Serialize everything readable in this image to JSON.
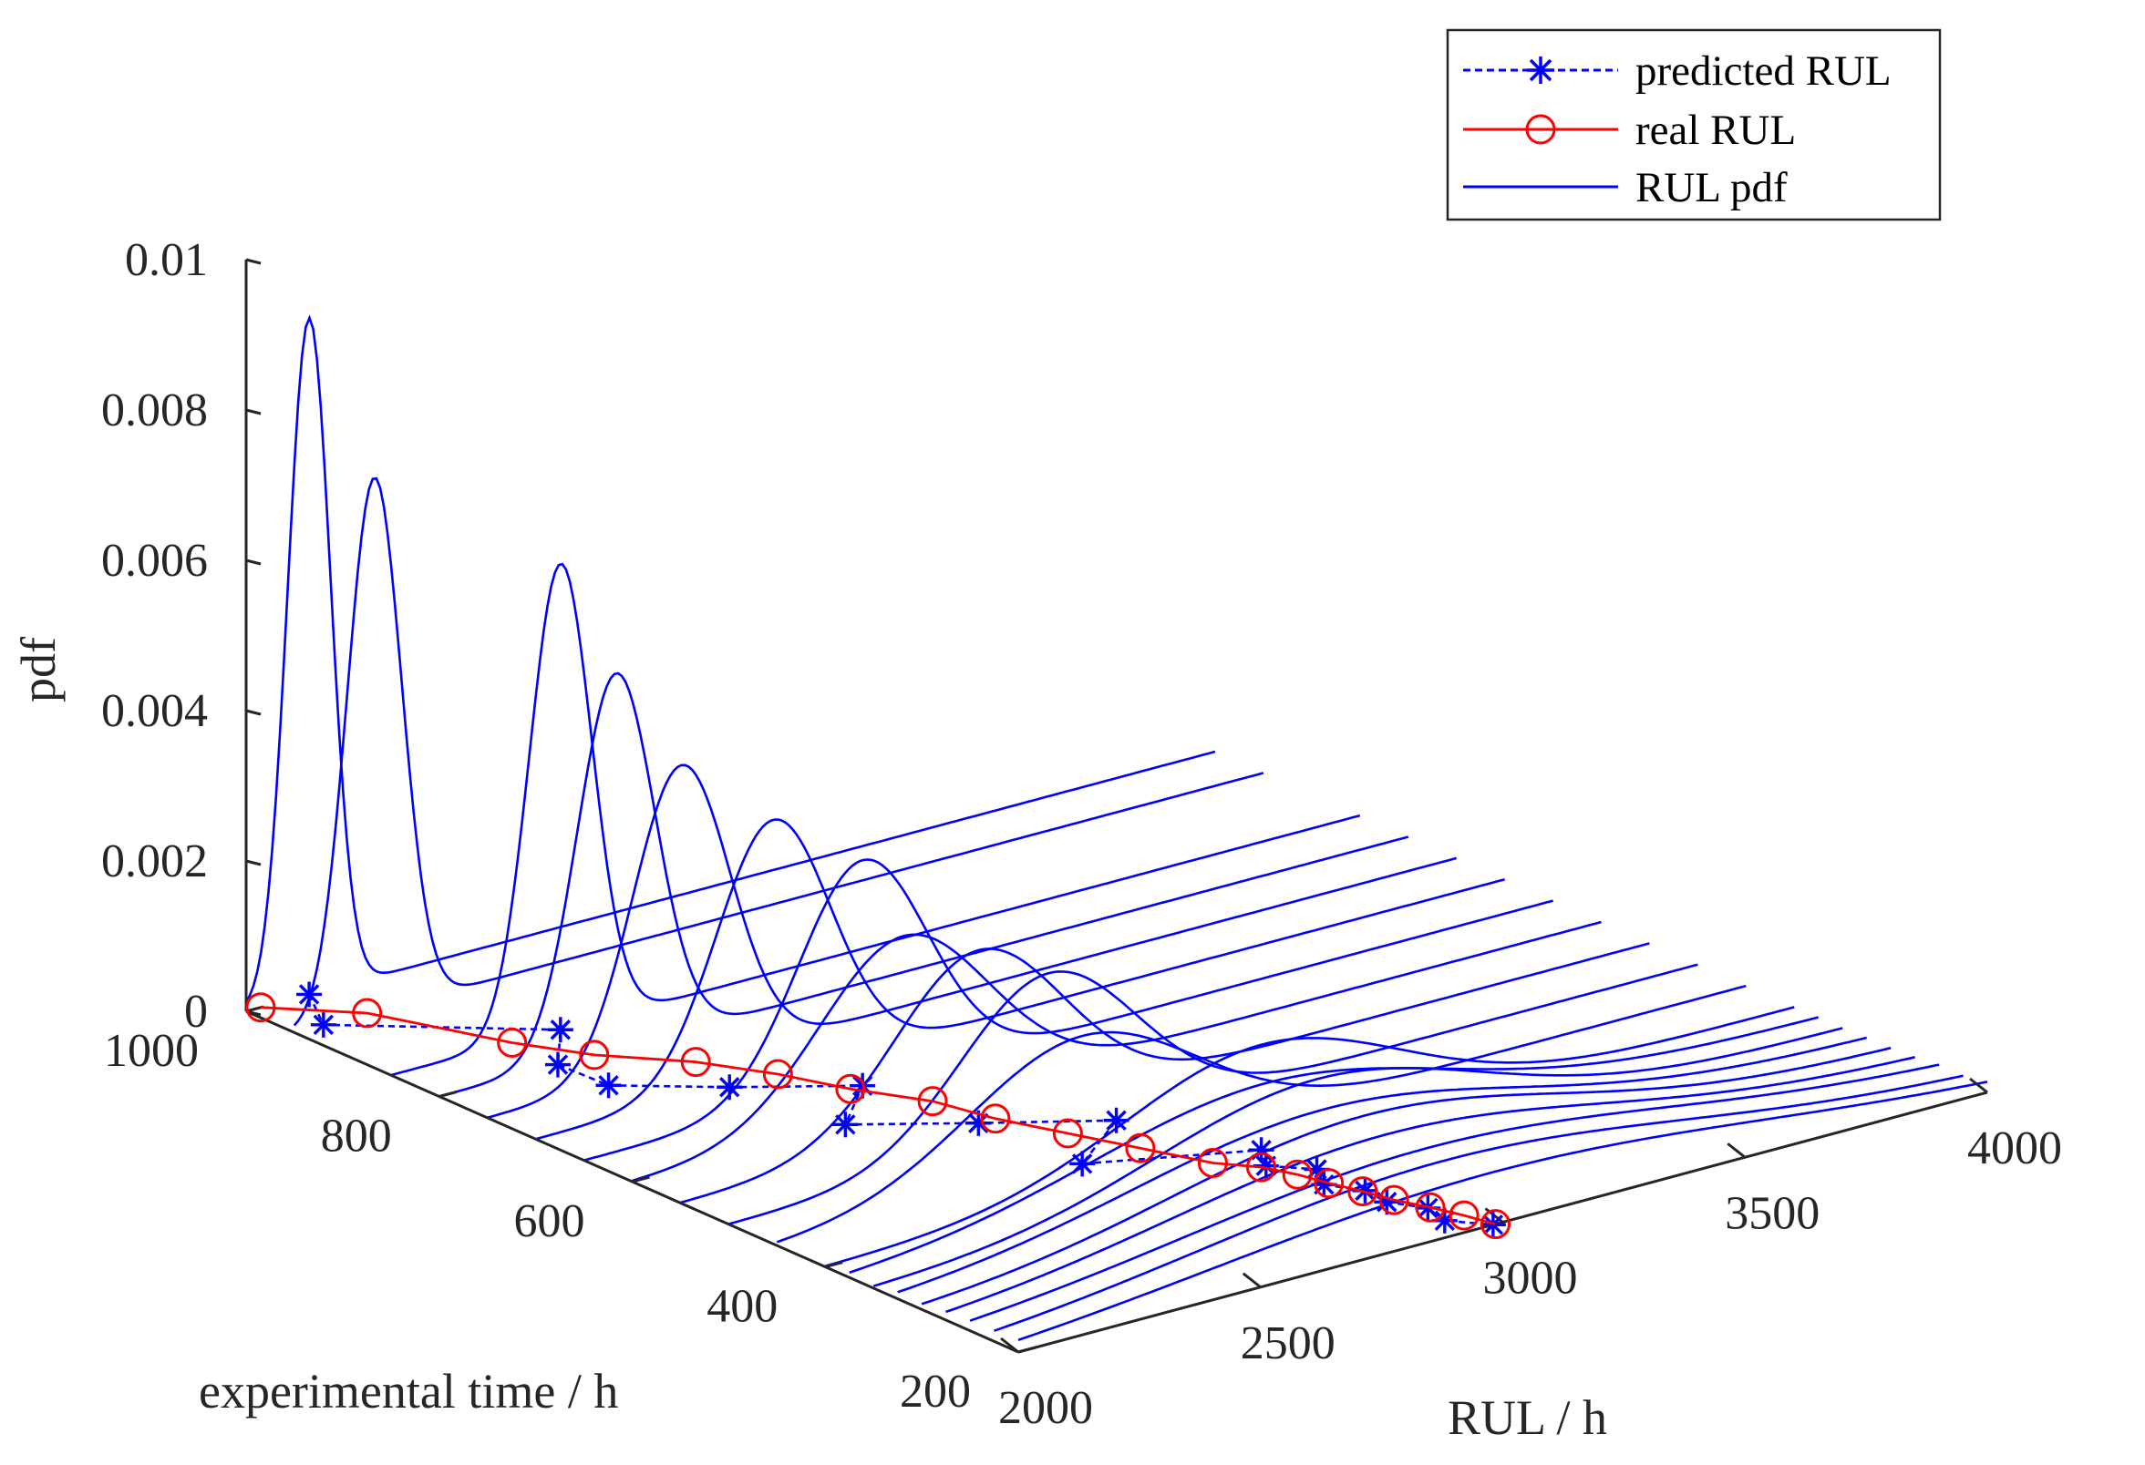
{
  "chart_data": {
    "type": "3d-line",
    "xlabel": "RUL / h",
    "ylabel": "experimental time / h",
    "zlabel": "pdf",
    "xlim": [
      2000,
      4000
    ],
    "ylim": [
      200,
      1000
    ],
    "zlim": [
      0,
      0.01
    ],
    "x_ticks": [
      "2000",
      "2500",
      "3000",
      "3500",
      "4000"
    ],
    "y_ticks": [
      "200",
      "400",
      "600",
      "800",
      "1000"
    ],
    "z_ticks": [
      "0",
      "0.002",
      "0.004",
      "0.006",
      "0.008",
      "0.01"
    ],
    "colors": {
      "pdf": "#0000ff",
      "predicted": "#0000ff",
      "real": "#ff0000",
      "axis": "#262626"
    },
    "legend": {
      "position": "top-right",
      "entries": [
        {
          "label": "predicted RUL",
          "style": "dashed",
          "marker": "*",
          "color": "#0000ff"
        },
        {
          "label": "real RUL",
          "style": "solid",
          "marker": "o",
          "color": "#ff0000"
        },
        {
          "label": "RUL pdf",
          "style": "solid",
          "marker": "",
          "color": "#0000ff"
        }
      ]
    },
    "series": [
      {
        "name": "RUL pdf",
        "pdf_curves": [
          {
            "t": 1000,
            "mean": 2130,
            "peak": 0.009
          },
          {
            "t": 950,
            "mean": 2165,
            "peak": 0.0071
          },
          {
            "t": 850,
            "mean": 2350,
            "peak": 0.0062
          },
          {
            "t": 800,
            "mean": 2365,
            "peak": 0.005
          },
          {
            "t": 750,
            "mean": 2400,
            "peak": 0.004
          },
          {
            "t": 700,
            "mean": 2490,
            "peak": 0.0034
          },
          {
            "t": 650,
            "mean": 2575,
            "peak": 0.003
          },
          {
            "t": 600,
            "mean": 2560,
            "peak": 0.0023
          },
          {
            "t": 550,
            "mean": 2615,
            "peak": 0.0023
          },
          {
            "t": 500,
            "mean": 2660,
            "peak": 0.0022
          },
          {
            "t": 450,
            "mean": 2630,
            "peak": 0.0017
          },
          {
            "t": 400,
            "mean": 2900,
            "peak": 0.0014
          },
          {
            "t": 375,
            "mean": 2860,
            "peak": 0.0011
          },
          {
            "t": 350,
            "mean": 2915,
            "peak": 0.0012
          },
          {
            "t": 325,
            "mean": 2880,
            "peak": 0.001
          },
          {
            "t": 300,
            "mean": 2915,
            "peak": 0.001
          },
          {
            "t": 275,
            "mean": 2910,
            "peak": 0.0009
          },
          {
            "t": 250,
            "mean": 2945,
            "peak": 0.0008
          },
          {
            "t": 225,
            "mean": 2930,
            "peak": 0.0008
          },
          {
            "t": 200,
            "mean": 2980,
            "peak": 0.0007
          }
        ]
      },
      {
        "name": "predicted RUL",
        "points": [
          {
            "t": 1000,
            "rul": 2130
          },
          {
            "t": 950,
            "rul": 2060
          },
          {
            "t": 850,
            "rul": 2350
          },
          {
            "t": 800,
            "rul": 2245
          },
          {
            "t": 750,
            "rul": 2250
          },
          {
            "t": 700,
            "rul": 2400
          },
          {
            "t": 650,
            "rul": 2575
          },
          {
            "t": 600,
            "rul": 2440
          },
          {
            "t": 550,
            "rul": 2615
          },
          {
            "t": 500,
            "rul": 2800
          },
          {
            "t": 450,
            "rul": 2630
          },
          {
            "t": 400,
            "rul": 2900
          },
          {
            "t": 375,
            "rul": 2860
          },
          {
            "t": 350,
            "rul": 2915
          },
          {
            "t": 325,
            "rul": 2880
          },
          {
            "t": 300,
            "rul": 2915
          },
          {
            "t": 275,
            "rul": 2910
          },
          {
            "t": 250,
            "rul": 2945
          },
          {
            "t": 225,
            "rul": 2930
          },
          {
            "t": 200,
            "rul": 2980
          }
        ]
      },
      {
        "name": "real RUL",
        "points": [
          {
            "t": 1000,
            "rul": 2030
          },
          {
            "t": 950,
            "rul": 2150
          },
          {
            "t": 850,
            "rul": 2250
          },
          {
            "t": 800,
            "rul": 2320
          },
          {
            "t": 750,
            "rul": 2430
          },
          {
            "t": 700,
            "rul": 2500
          },
          {
            "t": 650,
            "rul": 2550
          },
          {
            "t": 600,
            "rul": 2620
          },
          {
            "t": 550,
            "rul": 2650
          },
          {
            "t": 500,
            "rul": 2700
          },
          {
            "t": 450,
            "rul": 2750
          },
          {
            "t": 400,
            "rul": 2800
          },
          {
            "t": 375,
            "rul": 2850
          },
          {
            "t": 350,
            "rul": 2875
          },
          {
            "t": 325,
            "rul": 2890
          },
          {
            "t": 300,
            "rul": 2910
          },
          {
            "t": 275,
            "rul": 2925
          },
          {
            "t": 250,
            "rul": 2950
          },
          {
            "t": 225,
            "rul": 2970
          },
          {
            "t": 200,
            "rul": 2985
          }
        ]
      }
    ]
  }
}
